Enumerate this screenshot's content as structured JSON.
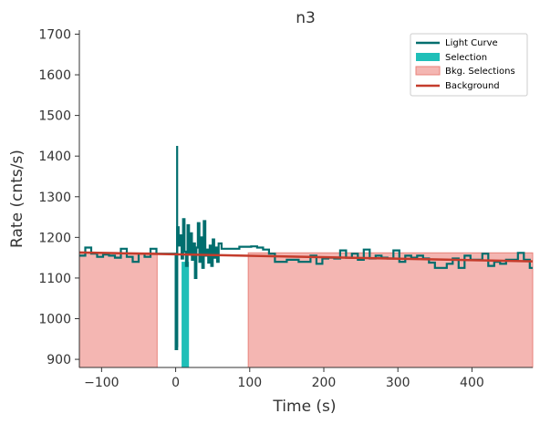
{
  "chart_data": {
    "type": "line",
    "title": "n3",
    "xlabel": "Time (s)",
    "ylabel": "Rate (cnts/s)",
    "xlim": [
      -130,
      482
    ],
    "ylim": [
      880,
      1710
    ],
    "xticks": [
      -100,
      0,
      100,
      200,
      300,
      400
    ],
    "xtick_labels": [
      "−100",
      "0",
      "100",
      "200",
      "300",
      "400"
    ],
    "yticks": [
      900,
      1000,
      1100,
      1200,
      1300,
      1400,
      1500,
      1600,
      1700
    ],
    "ytick_labels": [
      "900",
      "1000",
      "1100",
      "1200",
      "1300",
      "1400",
      "1500",
      "1600",
      "1700"
    ],
    "legend_position": "top-right",
    "legend": [
      {
        "label": "Light Curve",
        "kind": "line",
        "color": "#006e6e"
      },
      {
        "label": "Selection",
        "kind": "patch",
        "color": "#1fbfb8"
      },
      {
        "label": "Bkg. Selections",
        "kind": "patch",
        "color": "#f4b6b2"
      },
      {
        "label": "Background",
        "kind": "line",
        "color": "#c43c2c"
      }
    ],
    "colors": {
      "light_curve": "#006e6e",
      "selection": "#1fbfb8",
      "bkg_fill": "#f4b6b2",
      "bkg_edge": "#e8837b",
      "background": "#c43c2c"
    },
    "bkg_selections": [
      [
        -130,
        -25
      ],
      [
        98,
        482
      ]
    ],
    "source_selection": [
      8,
      18
    ],
    "background_fit": {
      "x": [
        -130,
        482
      ],
      "y": [
        1163,
        1141
      ]
    },
    "light_curve": {
      "x": [
        -130,
        -122,
        -114,
        -106,
        -98,
        -90,
        -82,
        -74,
        -66,
        -58,
        -50,
        -42,
        -34,
        -26,
        0,
        2,
        4,
        6,
        8,
        10,
        12,
        14,
        16,
        18,
        20,
        22,
        24,
        26,
        28,
        30,
        32,
        34,
        36,
        38,
        40,
        42,
        44,
        46,
        48,
        50,
        52,
        54,
        56,
        58,
        62,
        70,
        78,
        86,
        94,
        102,
        110,
        118,
        126,
        134,
        142,
        150,
        158,
        166,
        174,
        182,
        190,
        198,
        206,
        214,
        222,
        230,
        238,
        246,
        254,
        262,
        270,
        278,
        286,
        294,
        302,
        310,
        318,
        326,
        334,
        342,
        350,
        358,
        366,
        374,
        382,
        390,
        398,
        406,
        414,
        422,
        430,
        438,
        446,
        454,
        462,
        470,
        478
      ],
      "y": [
        1155,
        1175,
        1160,
        1152,
        1158,
        1155,
        1150,
        1172,
        1152,
        1140,
        1160,
        1152,
        1172,
        1160,
        925,
        1225,
        1180,
        1205,
        1148,
        1245,
        1165,
        1130,
        1230,
        1158,
        1210,
        1145,
        1185,
        1100,
        1175,
        1235,
        1140,
        1200,
        1125,
        1240,
        1155,
        1170,
        1138,
        1180,
        1130,
        1195,
        1150,
        1175,
        1140,
        1185,
        1172,
        1172,
        1172,
        1177,
        1177,
        1178,
        1175,
        1170,
        1160,
        1140,
        1140,
        1145,
        1145,
        1140,
        1140,
        1155,
        1135,
        1148,
        1150,
        1148,
        1168,
        1150,
        1160,
        1145,
        1170,
        1148,
        1155,
        1150,
        1148,
        1168,
        1140,
        1155,
        1150,
        1155,
        1148,
        1138,
        1125,
        1125,
        1135,
        1148,
        1125,
        1155,
        1145,
        1145,
        1160,
        1130,
        1140,
        1135,
        1145,
        1145,
        1162,
        1145,
        1125
      ]
    },
    "spike": {
      "x": 2,
      "ymin": 930,
      "ymax": 1425
    }
  }
}
